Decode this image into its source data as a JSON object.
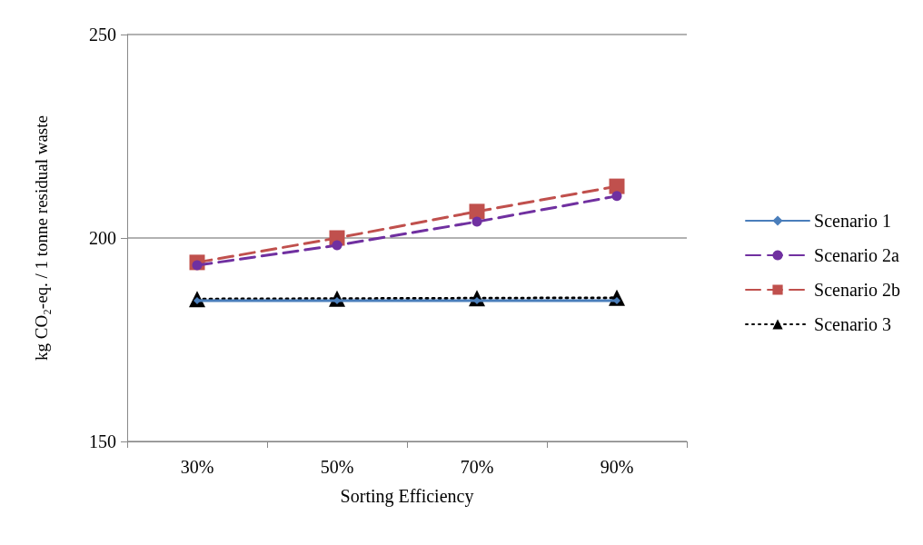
{
  "chart_data": {
    "type": "line",
    "xlabel": "Sorting Efficiency",
    "ylabel": "kg CO₂-eq. / 1 tonne residual waste",
    "categories": [
      "30%",
      "50%",
      "70%",
      "90%"
    ],
    "series": [
      {
        "name": "Scenario 1",
        "color": "#4a7ebb",
        "values": [
          184.6,
          184.6,
          184.6,
          184.6
        ],
        "marker": "diamond",
        "line_style": "solid"
      },
      {
        "name": "Scenario 2a",
        "color": "#7030a0",
        "values": [
          193.3,
          198.2,
          204.0,
          210.3
        ],
        "marker": "circle",
        "line_style": "dashed"
      },
      {
        "name": "Scenario 2b",
        "color": "#c0504d",
        "values": [
          194,
          200,
          206.5,
          212.7
        ],
        "marker": "square",
        "line_style": "dashed"
      },
      {
        "name": "Scenario 3",
        "color": "#000000",
        "values": [
          185.0,
          185.1,
          185.2,
          185.3
        ],
        "marker": "triangle",
        "line_style": "dotted"
      }
    ],
    "ylim": [
      150,
      250
    ],
    "yticks": [
      150,
      200,
      250
    ],
    "grid": "y",
    "legend": "right"
  }
}
